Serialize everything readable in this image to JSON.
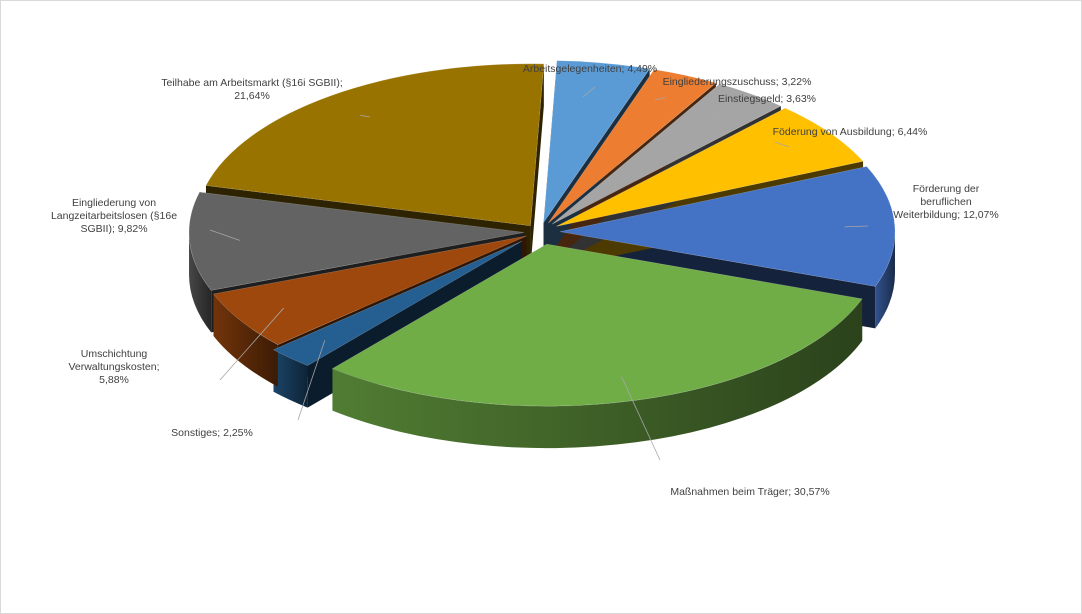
{
  "chart_data": {
    "type": "pie",
    "style": "3d-exploded",
    "legend": "none",
    "slices": [
      {
        "name": "Arbeitsgelegenheiten",
        "value": 4.49,
        "label": [
          "Arbeitsgelegenheiten; 4,49%"
        ],
        "color": "#5b9bd5"
      },
      {
        "name": "Eingliederungszuschuss",
        "value": 3.22,
        "label": [
          "Eingliederungszuschuss; 3,22%"
        ],
        "color": "#ed7d31"
      },
      {
        "name": "Einstiegsgeld",
        "value": 3.63,
        "label": [
          "Einstiegsgeld; 3,63%"
        ],
        "color": "#a5a5a5"
      },
      {
        "name": "Föderung von Ausbildung",
        "value": 6.44,
        "label": [
          "Föderung von Ausbildung; 6,44%"
        ],
        "color": "#ffc000"
      },
      {
        "name": "Förderung der beruflichen Weiterbildung",
        "value": 12.07,
        "label": [
          "Förderung der",
          "beruflichen",
          "Weiterbildung; 12,07%"
        ],
        "color": "#4472c4"
      },
      {
        "name": "Maßnahmen beim Träger",
        "value": 30.57,
        "label": [
          "Maßnahmen beim Träger; 30,57%"
        ],
        "color": "#70ad47"
      },
      {
        "name": "Sonstiges",
        "value": 2.25,
        "label": [
          "Sonstiges; 2,25%"
        ],
        "color": "#255e91"
      },
      {
        "name": "Umschichtung Verwaltungskosten",
        "value": 5.88,
        "label": [
          "Umschichtung",
          "Verwaltungskosten;",
          "5,88%"
        ],
        "color": "#9e480e"
      },
      {
        "name": "Eingliederung von Langzeitarbeitslosen (§16e SGBII)",
        "value": 9.82,
        "label": [
          "Eingliederung von",
          "Langzeitarbeitslosen (§16e",
          "SGBII); 9,82%"
        ],
        "color": "#636363"
      },
      {
        "name": "Teilhabe am Arbeitsmarkt (§16i SGBII)",
        "value": 21.64,
        "label": [
          "Teilhabe am Arbeitsmarkt (§16i SGBII);",
          "21,64%"
        ],
        "color": "#997300"
      }
    ]
  }
}
